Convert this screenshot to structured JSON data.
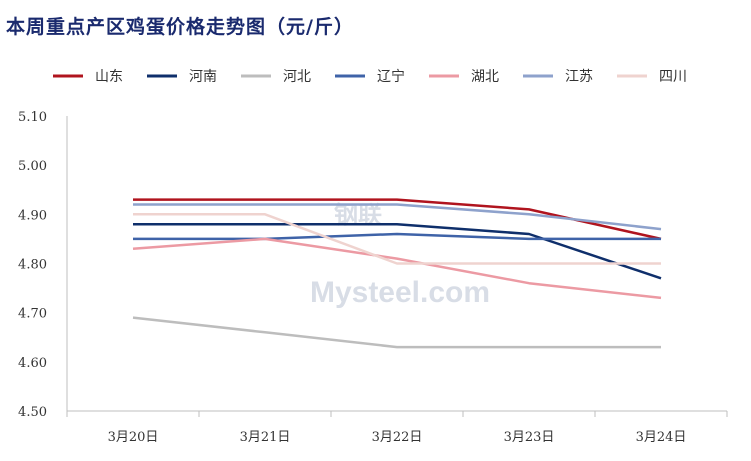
{
  "title": "本周重点产区鸡蛋价格走势图（元/斤）",
  "watermark": {
    "line1": "钢联",
    "line2": "Mysteel.com"
  },
  "chart_data": {
    "type": "line",
    "title": "本周重点产区鸡蛋价格走势图（元/斤）",
    "xlabel": "",
    "ylabel": "",
    "categories": [
      "3月20日",
      "3月21日",
      "3月22日",
      "3月23日",
      "3月24日"
    ],
    "ylim": [
      4.5,
      5.1
    ],
    "yticks": [
      "4.50",
      "4.60",
      "4.70",
      "4.80",
      "4.90",
      "5.00",
      "5.10"
    ],
    "grid": false,
    "legend_position": "top",
    "series": [
      {
        "name": "山东",
        "color": "#b0141e",
        "values": [
          4.93,
          4.93,
          4.93,
          4.91,
          4.85
        ]
      },
      {
        "name": "河南",
        "color": "#0f2f6b",
        "values": [
          4.88,
          4.88,
          4.88,
          4.86,
          4.77
        ]
      },
      {
        "name": "河北",
        "color": "#bdbdbd",
        "values": [
          4.69,
          4.66,
          4.63,
          4.63,
          4.63
        ]
      },
      {
        "name": "辽宁",
        "color": "#3f63a8",
        "values": [
          4.85,
          4.85,
          4.86,
          4.85,
          4.85
        ]
      },
      {
        "name": "湖北",
        "color": "#ec9aa3",
        "values": [
          4.83,
          4.85,
          4.81,
          4.76,
          4.73
        ]
      },
      {
        "name": "江苏",
        "color": "#8ea2cc",
        "values": [
          4.92,
          4.92,
          4.92,
          4.9,
          4.87
        ]
      },
      {
        "name": "四川",
        "color": "#efd3cf",
        "values": [
          4.9,
          4.9,
          4.8,
          4.8,
          4.8
        ]
      }
    ]
  }
}
